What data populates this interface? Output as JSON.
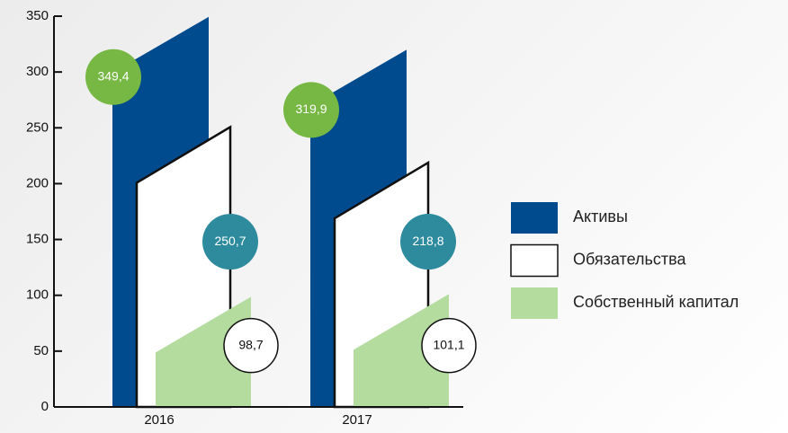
{
  "chart_data": {
    "type": "bar",
    "categories": [
      "2016",
      "2017"
    ],
    "series": [
      {
        "name": "Активы",
        "color": "#004b8d",
        "values": [
          349.4,
          319.9
        ],
        "value_labels": [
          "349,4",
          "319,9"
        ]
      },
      {
        "name": "Обязательства",
        "color": "#ffffff",
        "values": [
          250.7,
          218.8
        ],
        "value_labels": [
          "250,7",
          "218,8"
        ]
      },
      {
        "name": "Собственный капитал",
        "color": "#b5dc9f",
        "values": [
          98.7,
          101.1
        ],
        "value_labels": [
          "98,7",
          "101,1"
        ]
      }
    ],
    "ylim": [
      0,
      350
    ],
    "yticks": [
      0,
      50,
      100,
      150,
      200,
      250,
      300,
      350
    ],
    "legend": "right"
  }
}
